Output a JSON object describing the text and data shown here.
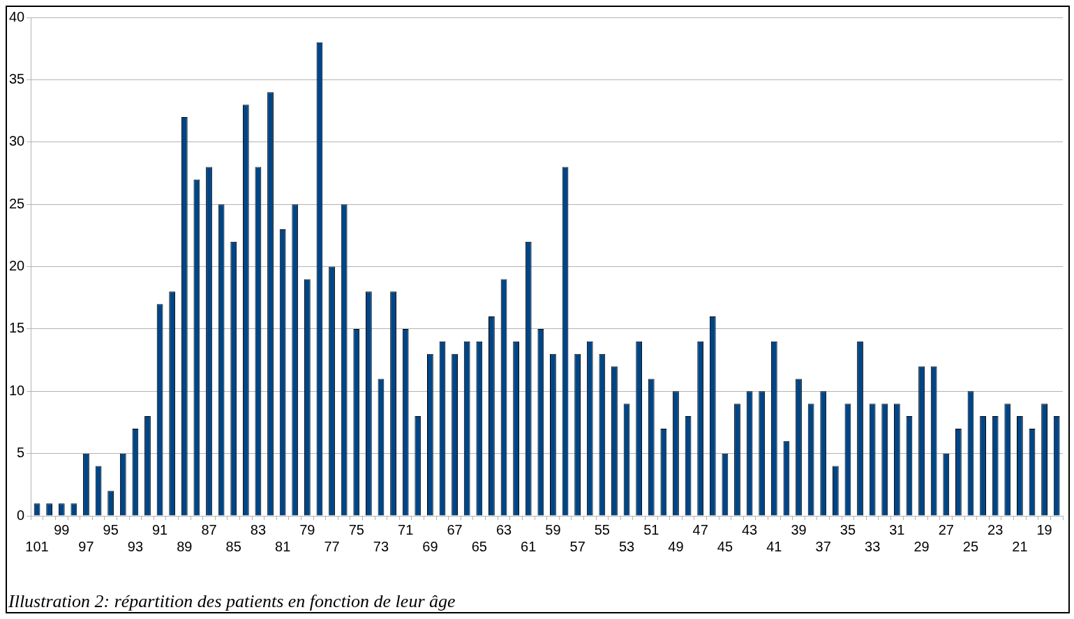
{
  "chart_data": {
    "type": "bar",
    "categories": [
      "101",
      null,
      "99",
      null,
      "97",
      null,
      "95",
      null,
      "93",
      null,
      "91",
      null,
      "89",
      null,
      "87",
      null,
      "85",
      null,
      "83",
      null,
      "81",
      null,
      "79",
      null,
      "77",
      null,
      "75",
      null,
      "73",
      null,
      "71",
      null,
      "69",
      null,
      "67",
      null,
      "65",
      null,
      "63",
      null,
      "61",
      null,
      "59",
      null,
      "57",
      null,
      "55",
      null,
      "53",
      null,
      "51",
      null,
      "49",
      null,
      "47",
      null,
      "45",
      null,
      "43",
      null,
      "41",
      null,
      "39",
      null,
      "37",
      null,
      "35",
      null,
      "33",
      null,
      "31",
      null,
      "29",
      null,
      "27",
      null,
      "25",
      null,
      "23",
      null,
      "21",
      null,
      "19",
      null
    ],
    "values": [
      1,
      1,
      1,
      1,
      5,
      4,
      2,
      5,
      7,
      8,
      17,
      18,
      32,
      27,
      28,
      25,
      22,
      33,
      28,
      34,
      23,
      25,
      19,
      38,
      20,
      25,
      15,
      18,
      11,
      18,
      15,
      8,
      13,
      14,
      13,
      14,
      14,
      16,
      19,
      14,
      22,
      15,
      13,
      28,
      13,
      14,
      13,
      12,
      9,
      14,
      11,
      7,
      10,
      8,
      14,
      16,
      5,
      9,
      10,
      10,
      14,
      6,
      11,
      9,
      10,
      4,
      9,
      14,
      9,
      9,
      9,
      8,
      12,
      12,
      5,
      7,
      10,
      8,
      8,
      9,
      8,
      7,
      9,
      8
    ],
    "color": "#004586",
    "ylim": [
      0,
      40
    ],
    "yticks": [
      0,
      5,
      10,
      15,
      20,
      25,
      30,
      35,
      40
    ],
    "grid": "y",
    "annotations": [
      "Illustration 2: répartition des patients en fonction de leur âge"
    ]
  }
}
